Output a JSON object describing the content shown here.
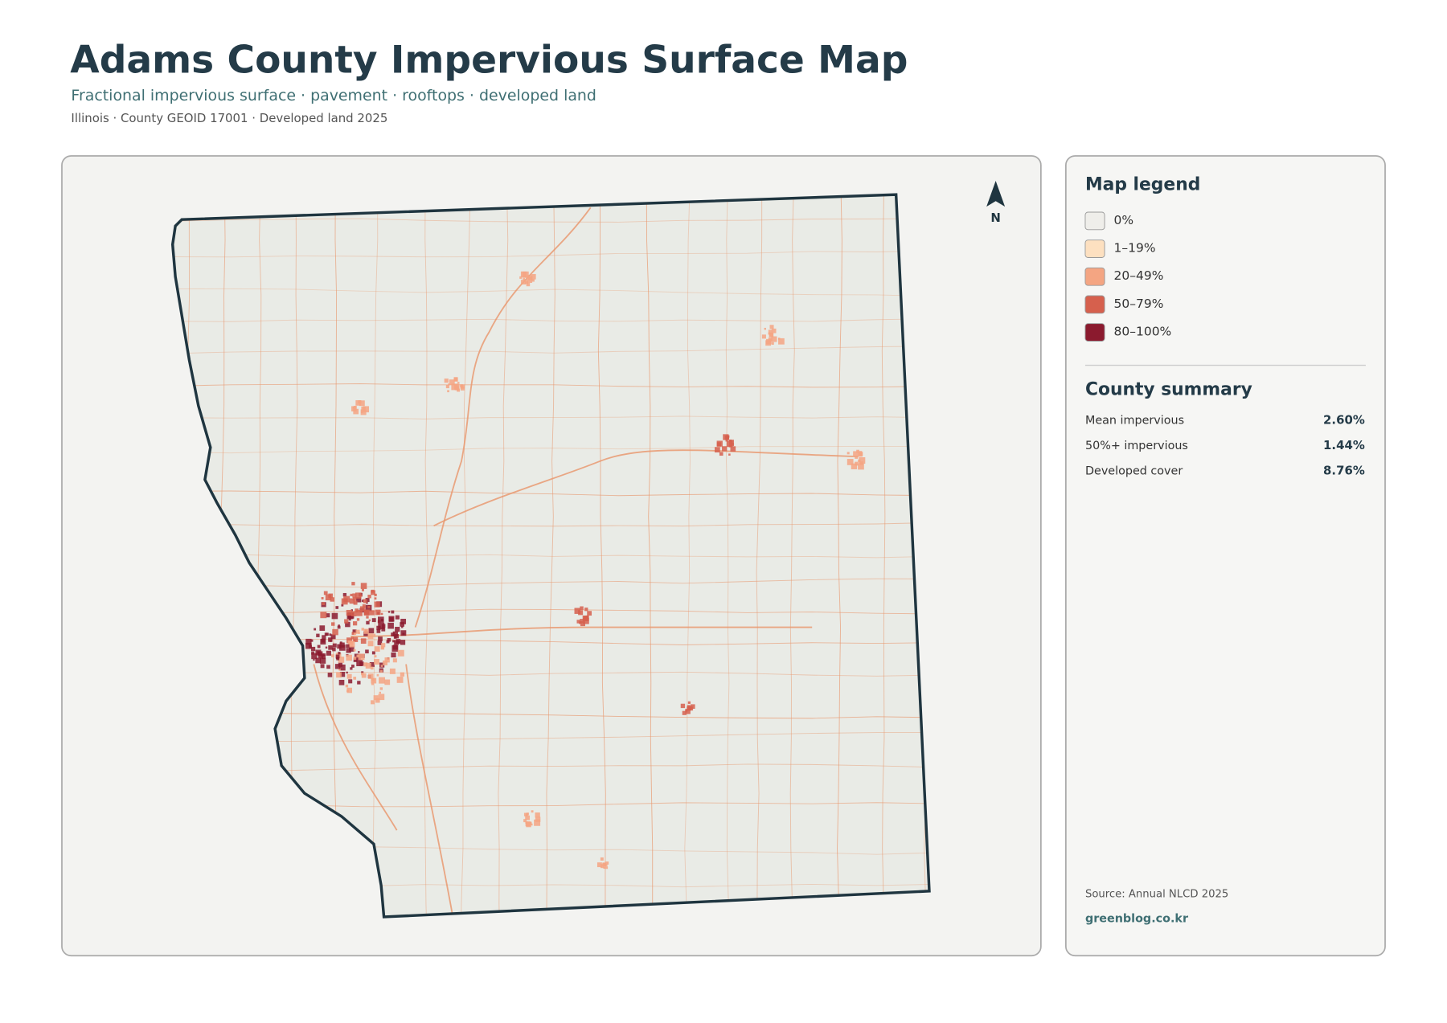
{
  "header": {
    "title": "Adams County Impervious Surface Map",
    "subtitle": "Fractional impervious surface · pavement · rooftops · developed land",
    "meta": "Illinois · County GEOID 17001 · Developed land 2025"
  },
  "map": {
    "north_label": "N"
  },
  "legend": {
    "title": "Map legend",
    "items": [
      {
        "label": "0%",
        "color": "#efeeea"
      },
      {
        "label": "1–19%",
        "color": "#fde0c0"
      },
      {
        "label": "20–49%",
        "color": "#f4a582"
      },
      {
        "label": "50–79%",
        "color": "#d6604d"
      },
      {
        "label": "80–100%",
        "color": "#8b1a2e"
      }
    ]
  },
  "summary": {
    "title": "County summary",
    "rows": [
      {
        "label": "Mean impervious",
        "value": "2.60%"
      },
      {
        "label": "50%+ impervious",
        "value": "1.44%"
      },
      {
        "label": "Developed cover",
        "value": "8.76%"
      }
    ]
  },
  "footer": {
    "source": "Source: Annual NLCD 2025",
    "link": "greenblog.co.kr"
  }
}
